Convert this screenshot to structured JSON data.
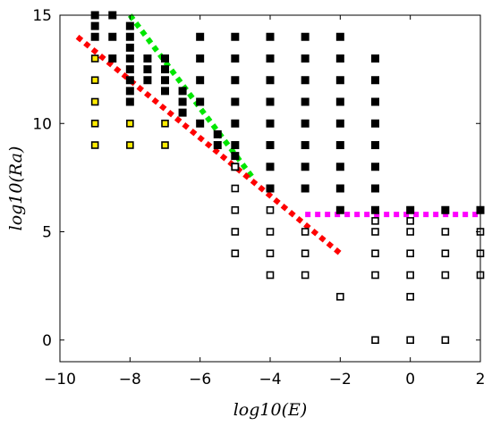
{
  "chart_data": {
    "type": "scatter",
    "title": "",
    "xlabel": "log10(E)",
    "ylabel": "log10(Ra)",
    "xlim": [
      -10,
      2
    ],
    "ylim": [
      -1,
      15
    ],
    "xticks": [
      -10,
      -8,
      -6,
      -4,
      -2,
      0,
      2
    ],
    "yticks": [
      0,
      5,
      10,
      15
    ],
    "xtick_labels": [
      "−10",
      "−8",
      "−6",
      "−4",
      "−2",
      "0",
      "2"
    ],
    "ytick_labels": [
      "0",
      "5",
      "10",
      "15"
    ],
    "grid": false,
    "legend": "none",
    "series": [
      {
        "marker": "filled-square",
        "color": "#000000",
        "points": [
          [
            -9,
            15
          ],
          [
            -9,
            14.5
          ],
          [
            -9,
            14
          ],
          [
            -8.5,
            15
          ],
          [
            -8.5,
            14
          ],
          [
            -8.5,
            13
          ],
          [
            -8,
            14.5
          ],
          [
            -8,
            14
          ],
          [
            -8,
            13.5
          ],
          [
            -8,
            13
          ],
          [
            -8,
            12.5
          ],
          [
            -8,
            12
          ],
          [
            -8,
            11.5
          ],
          [
            -8,
            11
          ],
          [
            -7.5,
            13
          ],
          [
            -7.5,
            12.5
          ],
          [
            -7.5,
            12
          ],
          [
            -7,
            13
          ],
          [
            -7,
            12.5
          ],
          [
            -7,
            12
          ],
          [
            -7,
            11.5
          ],
          [
            -6.5,
            11.5
          ],
          [
            -6.5,
            11
          ],
          [
            -6.5,
            10.5
          ],
          [
            -6,
            14
          ],
          [
            -6,
            13
          ],
          [
            -6,
            12
          ],
          [
            -6,
            11
          ],
          [
            -6,
            10
          ],
          [
            -5.5,
            9.5
          ],
          [
            -5.5,
            9
          ],
          [
            -5,
            14
          ],
          [
            -5,
            13
          ],
          [
            -5,
            12
          ],
          [
            -5,
            11
          ],
          [
            -5,
            10
          ],
          [
            -5,
            9
          ],
          [
            -5,
            8.5
          ],
          [
            -5,
            8
          ],
          [
            -4,
            14
          ],
          [
            -4,
            13
          ],
          [
            -4,
            12
          ],
          [
            -4,
            11
          ],
          [
            -4,
            10
          ],
          [
            -4,
            9
          ],
          [
            -4,
            8
          ],
          [
            -4,
            7
          ],
          [
            -3,
            14
          ],
          [
            -3,
            13
          ],
          [
            -3,
            12
          ],
          [
            -3,
            11
          ],
          [
            -3,
            10
          ],
          [
            -3,
            9
          ],
          [
            -3,
            8
          ],
          [
            -3,
            7
          ],
          [
            -2,
            14
          ],
          [
            -2,
            13
          ],
          [
            -2,
            12
          ],
          [
            -2,
            11
          ],
          [
            -2,
            10
          ],
          [
            -2,
            9
          ],
          [
            -2,
            8
          ],
          [
            -2,
            7
          ],
          [
            -2,
            6
          ],
          [
            -1,
            13
          ],
          [
            -1,
            12
          ],
          [
            -1,
            11
          ],
          [
            -1,
            10
          ],
          [
            -1,
            9
          ],
          [
            -1,
            8
          ],
          [
            -1,
            7
          ],
          [
            -1,
            6
          ],
          [
            0,
            6
          ],
          [
            1,
            6
          ],
          [
            2,
            6
          ]
        ]
      },
      {
        "marker": "yellow-square",
        "color": "#ffeb00",
        "points": [
          [
            -9,
            13
          ],
          [
            -9,
            12
          ],
          [
            -9,
            11
          ],
          [
            -9,
            10
          ],
          [
            -9,
            9
          ],
          [
            -8,
            10
          ],
          [
            -8,
            9
          ],
          [
            -7,
            10
          ],
          [
            -7,
            9
          ]
        ]
      },
      {
        "marker": "open-square",
        "color": "#ffffff",
        "points": [
          [
            -5,
            8
          ],
          [
            -5,
            7
          ],
          [
            -5,
            6
          ],
          [
            -5,
            5
          ],
          [
            -5,
            4
          ],
          [
            -4,
            6
          ],
          [
            -4,
            5
          ],
          [
            -4,
            4
          ],
          [
            -4,
            3
          ],
          [
            -3,
            5
          ],
          [
            -3,
            4
          ],
          [
            -3,
            3
          ],
          [
            -2,
            2
          ],
          [
            -1,
            5.5
          ],
          [
            -1,
            5
          ],
          [
            -1,
            4
          ],
          [
            -1,
            3
          ],
          [
            -1,
            0
          ],
          [
            0,
            5.5
          ],
          [
            0,
            5
          ],
          [
            0,
            4
          ],
          [
            0,
            3
          ],
          [
            0,
            2
          ],
          [
            0,
            0
          ],
          [
            1,
            5
          ],
          [
            1,
            4
          ],
          [
            1,
            3
          ],
          [
            1,
            0
          ],
          [
            2,
            5
          ],
          [
            2,
            4
          ],
          [
            2,
            3
          ]
        ]
      }
    ],
    "lines": [
      {
        "color": "#00e600",
        "style": "dotted",
        "x": [
          -8,
          -4.5
        ],
        "y": [
          15,
          7.5
        ]
      },
      {
        "color": "#ff0000",
        "style": "dotted",
        "x": [
          -9.5,
          -2
        ],
        "y": [
          14,
          4
        ]
      },
      {
        "color": "#ff00ff",
        "style": "dotted",
        "x": [
          -3,
          2
        ],
        "y": [
          5.8,
          5.8
        ]
      }
    ]
  }
}
